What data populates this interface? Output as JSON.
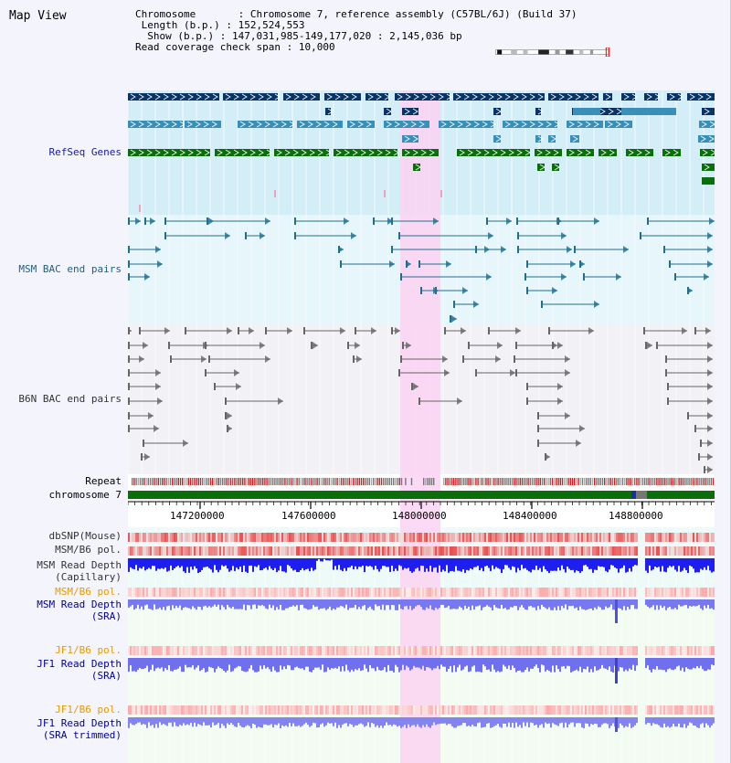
{
  "title": "Map View",
  "info": {
    "chromosome_label": "Chromosome",
    "chromosome_value": "Chromosome 7, reference assembly (C57BL/6J) (Build 37)",
    "length_label": "Length (b.p.)",
    "length_value": "152,524,553",
    "show_label": "Show (b.p.)",
    "show_value": "147,031,985-149,177,020 : 2,145,036 bp",
    "coverage_label": "Read coverage check span",
    "coverage_value": "10,000"
  },
  "tracks": {
    "refseq": "RefSeq Genes",
    "msm_bac": "MSM BAC end pairs",
    "b6n_bac": "B6N BAC end pairs",
    "repeat": "Repeat",
    "chromosome": "chromosome 7",
    "dbsnp": "dbSNP(Mouse)",
    "msm_b6_pol": "MSM/B6 pol.",
    "msm_depth_cap_1": "MSM Read Depth",
    "msm_depth_cap_2": "(Capillary)",
    "msm_b6_pol_sra": "MSM/B6 pol.",
    "msm_depth_sra_1": "MSM Read Depth",
    "msm_depth_sra_2": "(SRA)",
    "jf1_b6_pol": "JF1/B6 pol.",
    "jf1_depth_1": "JF1 Read Depth",
    "jf1_depth_2": "(SRA)",
    "jf1_b6_pol_trim": "JF1/B6 pol.",
    "jf1_trim_1": "JF1 Read Depth",
    "jf1_trim_2": "(SRA trimmed)"
  },
  "axis": {
    "ticks": [
      "147200000",
      "147600000",
      "148000000",
      "148400000",
      "148800000"
    ]
  },
  "colors": {
    "highlight": "#fcd2f2",
    "refseq_bg": "#d4eef8",
    "msm_bac_bg": "#e6f6fa",
    "b6n_bg": "#f2f2f6",
    "gene_dark": "#0a3466",
    "gene_mid": "#3a8fb8",
    "gene_green": "#0a6e0a",
    "chromosome_bar": "#0a6e0a"
  }
}
